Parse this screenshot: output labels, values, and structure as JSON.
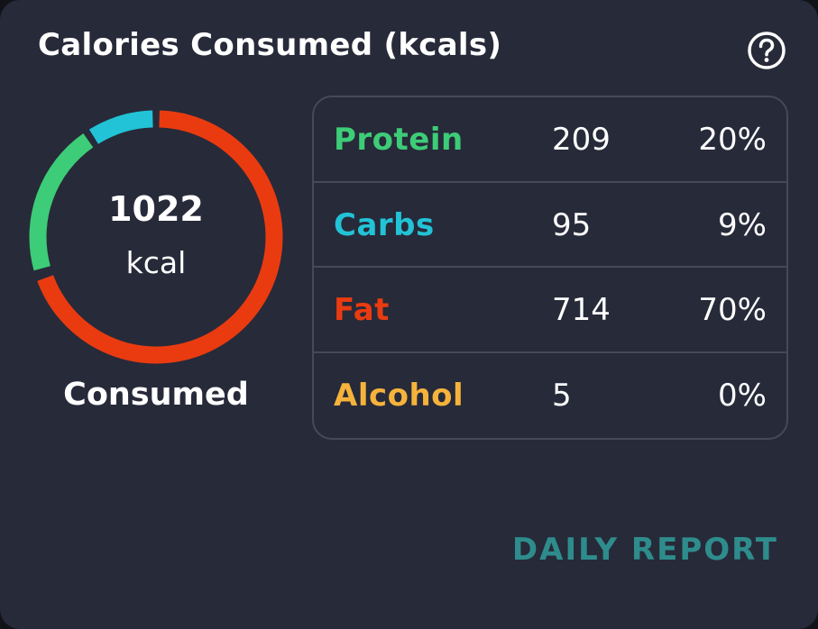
{
  "card": {
    "title": "Calories Consumed (kcals)",
    "help_icon": "question-circle-icon",
    "background_color": "#272a39"
  },
  "donut": {
    "value": "1022",
    "unit": "kcal",
    "label": "Consumed",
    "segments": [
      {
        "name": "Protein",
        "kcal": 209,
        "color": "#3dcc77"
      },
      {
        "name": "Carbs",
        "kcal": 95,
        "color": "#22c3d6"
      },
      {
        "name": "Fat",
        "kcal": 714,
        "color": "#ea3b10"
      },
      {
        "name": "Alcohol",
        "kcal": 5,
        "color": "#f6b33b"
      }
    ]
  },
  "macros": [
    {
      "name": "Protein",
      "kcal": "209",
      "percent": "20%",
      "color": "#3dcc77"
    },
    {
      "name": "Carbs",
      "kcal": "95",
      "percent": "9%",
      "color": "#22c3d6"
    },
    {
      "name": "Fat",
      "kcal": "714",
      "percent": "70%",
      "color": "#ea3b10"
    },
    {
      "name": "Alcohol",
      "kcal": "5",
      "percent": "0%",
      "color": "#f6b33b"
    }
  ],
  "actions": {
    "daily_report_label": "DAILY REPORT",
    "daily_report_color": "#2e8c8c"
  }
}
